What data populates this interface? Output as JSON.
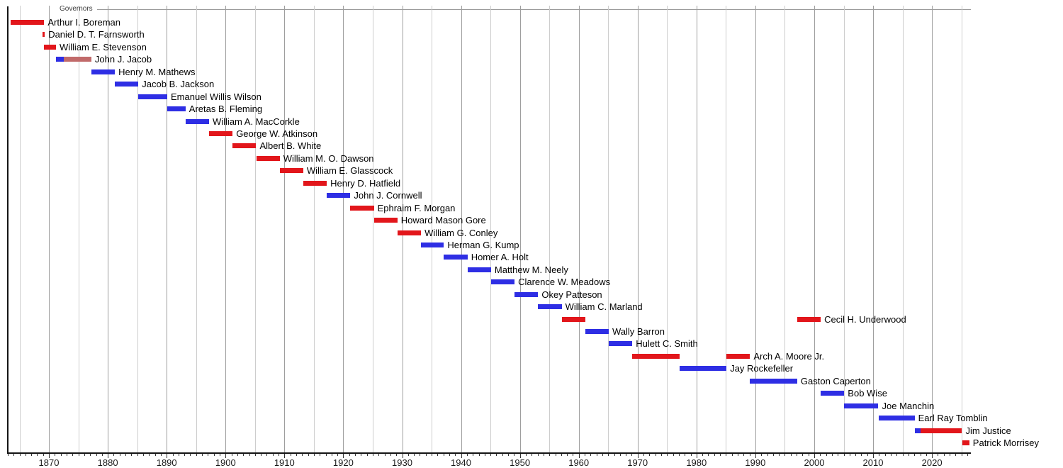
{
  "header": {
    "title": "Governors"
  },
  "palette": {
    "red": "#e2161b",
    "blue": "#2e2ee4",
    "faded_red": "#c16a6a",
    "grid_major": "#9e9e9e",
    "grid_minor": "#cdcdcd",
    "axis": "#141414",
    "header_rule": "#999999"
  },
  "chart_data": {
    "type": "timeline",
    "title": "Governors",
    "x_axis": {
      "min_year": 1863,
      "max_year": 2026.6,
      "minor_tick_interval_years": 1,
      "grid_interval_years": 5,
      "major_interval_years": 10,
      "decade_labels": [
        1870,
        1880,
        1890,
        1900,
        1910,
        1920,
        1930,
        1940,
        1950,
        1960,
        1970,
        1980,
        1990,
        2000,
        2010,
        2020
      ]
    },
    "grid": true,
    "bar_color_meaning": {
      "red": "red bar",
      "blue": "blue bar",
      "faded_red": "faded red bar"
    },
    "governors": [
      {
        "name": "Arthur I. Boreman",
        "bars": [
          {
            "start": 1863.5,
            "end": 1869.2,
            "color": "red"
          }
        ]
      },
      {
        "name": "Daniel D. T. Farnsworth",
        "bars": [
          {
            "start": 1868.9,
            "end": 1869.3,
            "color": "red"
          }
        ]
      },
      {
        "name": "William E. Stevenson",
        "bars": [
          {
            "start": 1869.2,
            "end": 1871.2,
            "color": "red"
          }
        ]
      },
      {
        "name": "John J. Jacob",
        "bars": [
          {
            "start": 1871.2,
            "end": 1872.5,
            "color": "blue"
          },
          {
            "start": 1872.5,
            "end": 1877.2,
            "color": "faded_red"
          }
        ]
      },
      {
        "name": "Henry M. Mathews",
        "bars": [
          {
            "start": 1877.2,
            "end": 1881.2,
            "color": "blue"
          }
        ]
      },
      {
        "name": "Jacob B. Jackson",
        "bars": [
          {
            "start": 1881.2,
            "end": 1885.2,
            "color": "blue"
          }
        ]
      },
      {
        "name": "Emanuel Willis Wilson",
        "bars": [
          {
            "start": 1885.2,
            "end": 1890.1,
            "color": "blue"
          }
        ]
      },
      {
        "name": "Aretas B. Fleming",
        "bars": [
          {
            "start": 1890.1,
            "end": 1893.2,
            "color": "blue"
          }
        ]
      },
      {
        "name": "William A. MacCorkle",
        "bars": [
          {
            "start": 1893.2,
            "end": 1897.2,
            "color": "blue"
          }
        ]
      },
      {
        "name": "George W. Atkinson",
        "bars": [
          {
            "start": 1897.2,
            "end": 1901.2,
            "color": "red"
          }
        ]
      },
      {
        "name": "Albert B. White",
        "bars": [
          {
            "start": 1901.2,
            "end": 1905.2,
            "color": "red"
          }
        ]
      },
      {
        "name": "William M. O. Dawson",
        "bars": [
          {
            "start": 1905.2,
            "end": 1909.2,
            "color": "red"
          }
        ]
      },
      {
        "name": "William E. Glasscock",
        "bars": [
          {
            "start": 1909.2,
            "end": 1913.2,
            "color": "red"
          }
        ]
      },
      {
        "name": "Henry D. Hatfield",
        "bars": [
          {
            "start": 1913.2,
            "end": 1917.2,
            "color": "red"
          }
        ]
      },
      {
        "name": "John J. Cornwell",
        "bars": [
          {
            "start": 1917.2,
            "end": 1921.2,
            "color": "blue"
          }
        ]
      },
      {
        "name": "Ephraim F. Morgan",
        "bars": [
          {
            "start": 1921.2,
            "end": 1925.2,
            "color": "red"
          }
        ]
      },
      {
        "name": "Howard Mason Gore",
        "bars": [
          {
            "start": 1925.2,
            "end": 1929.2,
            "color": "red"
          }
        ]
      },
      {
        "name": "William G. Conley",
        "bars": [
          {
            "start": 1929.2,
            "end": 1933.2,
            "color": "red"
          }
        ]
      },
      {
        "name": "Herman G. Kump",
        "bars": [
          {
            "start": 1933.2,
            "end": 1937.1,
            "color": "blue"
          }
        ]
      },
      {
        "name": "Homer A. Holt",
        "bars": [
          {
            "start": 1937.1,
            "end": 1941.1,
            "color": "blue"
          }
        ]
      },
      {
        "name": "Matthew M. Neely",
        "bars": [
          {
            "start": 1941.1,
            "end": 1945.1,
            "color": "blue"
          }
        ]
      },
      {
        "name": "Clarence W. Meadows",
        "bars": [
          {
            "start": 1945.1,
            "end": 1949.1,
            "color": "blue"
          }
        ]
      },
      {
        "name": "Okey Patteson",
        "bars": [
          {
            "start": 1949.1,
            "end": 1953.1,
            "color": "blue"
          }
        ]
      },
      {
        "name": "William C. Marland",
        "bars": [
          {
            "start": 1953.1,
            "end": 1957.1,
            "color": "blue"
          }
        ]
      },
      {
        "name": "Cecil H. Underwood",
        "bars": [
          {
            "start": 1957.1,
            "end": 1961.1,
            "color": "red"
          },
          {
            "start": 1997.1,
            "end": 2001.1,
            "color": "red"
          }
        ]
      },
      {
        "name": "Wally Barron",
        "bars": [
          {
            "start": 1961.1,
            "end": 1965.1,
            "color": "blue"
          }
        ]
      },
      {
        "name": "Hulett C. Smith",
        "bars": [
          {
            "start": 1965.1,
            "end": 1969.1,
            "color": "blue"
          }
        ]
      },
      {
        "name": "Arch A. Moore Jr.",
        "bars": [
          {
            "start": 1969.1,
            "end": 1977.1,
            "color": "red"
          },
          {
            "start": 1985.1,
            "end": 1989.1,
            "color": "red"
          }
        ]
      },
      {
        "name": "Jay Rockefeller",
        "bars": [
          {
            "start": 1977.1,
            "end": 1985.1,
            "color": "blue"
          }
        ]
      },
      {
        "name": "Gaston Caperton",
        "bars": [
          {
            "start": 1989.1,
            "end": 1997.1,
            "color": "blue"
          }
        ]
      },
      {
        "name": "Bob Wise",
        "bars": [
          {
            "start": 2001.1,
            "end": 2005.1,
            "color": "blue"
          }
        ]
      },
      {
        "name": "Joe Manchin",
        "bars": [
          {
            "start": 2005.1,
            "end": 2010.9,
            "color": "blue"
          }
        ]
      },
      {
        "name": "Earl Ray Tomblin",
        "bars": [
          {
            "start": 2010.9,
            "end": 2017.05,
            "color": "blue"
          }
        ]
      },
      {
        "name": "Jim Justice",
        "bars": [
          {
            "start": 2017.05,
            "end": 2018.1,
            "color": "blue"
          },
          {
            "start": 2018.1,
            "end": 2025.1,
            "color": "red"
          }
        ]
      },
      {
        "name": "Patrick Morrisey",
        "bars": [
          {
            "start": 2025.1,
            "end": 2026.35,
            "color": "red"
          }
        ]
      }
    ]
  }
}
